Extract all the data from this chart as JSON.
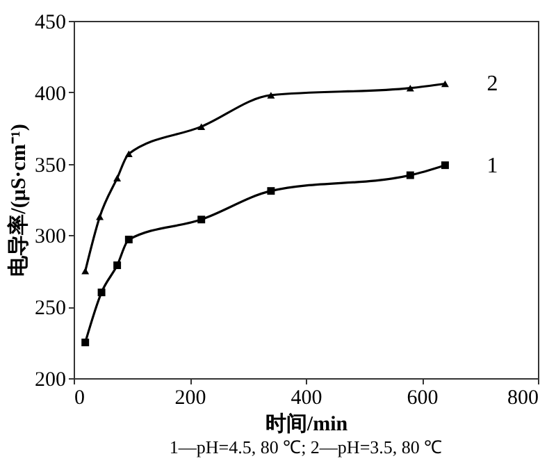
{
  "chart_data": {
    "type": "line",
    "xlabel": "时间/min",
    "ylabel": "电导率/(μS·cm⁻¹)",
    "xlim": [
      0,
      800
    ],
    "xticks": [
      0,
      200,
      400,
      600,
      800
    ],
    "ylim": [
      200,
      450
    ],
    "yticks": [
      200,
      250,
      300,
      350,
      400,
      450
    ],
    "line_style": "solid",
    "series": [
      {
        "name": "1",
        "color": "#000000",
        "marker": "square",
        "x": [
          20,
          48,
          75,
          95,
          220,
          340,
          580,
          640
        ],
        "values": [
          225,
          260,
          279,
          297,
          311,
          331,
          342,
          349
        ]
      },
      {
        "name": "2",
        "color": "#000000",
        "marker": "triangle",
        "x": [
          20,
          45,
          75,
          95,
          220,
          340,
          580,
          640
        ],
        "values": [
          275,
          313,
          340,
          357,
          376,
          398,
          403,
          406
        ]
      }
    ],
    "annotations": [
      "1—pH=4.5, 80 ℃; 2—pH=3.5, 80 ℃"
    ]
  }
}
